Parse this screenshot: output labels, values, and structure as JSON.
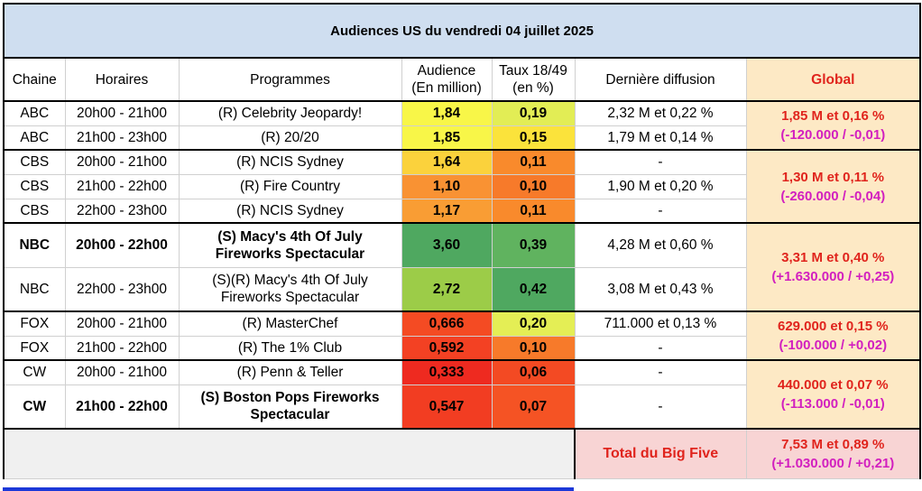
{
  "title": "Audiences US du vendredi 04 juillet 2025",
  "headers": {
    "chaine": "Chaine",
    "horaires": "Horaires",
    "programmes": "Programmes",
    "audience_l1": "Audience",
    "audience_l2": "(En million)",
    "taux_l1": "Taux 18/49",
    "taux_l2": "(en %)",
    "derniere": "Dernière diffusion",
    "global": "Global"
  },
  "rows": [
    {
      "chaine": "ABC",
      "horaires": "20h00 - 21h00",
      "prog": "(R) Celebrity Jeopardy!",
      "prog2": "",
      "audience": "1,84",
      "taux": "0,19",
      "derniere": "2,32 M et 0,22 %",
      "aud_color": "#f8f648",
      "taux_color": "#e2ed55",
      "bold": false
    },
    {
      "chaine": "ABC",
      "horaires": "21h00 - 23h00",
      "prog": "(R) 20/20",
      "prog2": "",
      "audience": "1,85",
      "taux": "0,15",
      "derniere": "1,79 M et 0,14 %",
      "aud_color": "#f8f648",
      "taux_color": "#fbe33b",
      "bold": false
    },
    {
      "chaine": "CBS",
      "horaires": "20h00 - 21h00",
      "prog": "(R) NCIS Sydney",
      "prog2": "",
      "audience": "1,64",
      "taux": "0,11",
      "derniere": "-",
      "aud_color": "#fbd23c",
      "taux_color": "#f98a2c",
      "bold": false
    },
    {
      "chaine": "CBS",
      "horaires": "21h00 - 22h00",
      "prog": "(R) Fire Country",
      "prog2": "",
      "audience": "1,10",
      "taux": "0,10",
      "derniere": "1,90 M et 0,20 %",
      "aud_color": "#f99233",
      "taux_color": "#f77a2a",
      "bold": false
    },
    {
      "chaine": "CBS",
      "horaires": "22h00 - 23h00",
      "prog": "(R) NCIS Sydney",
      "prog2": "",
      "audience": "1,17",
      "taux": "0,11",
      "derniere": "-",
      "aud_color": "#f99d34",
      "taux_color": "#f98a2c",
      "bold": false
    },
    {
      "chaine": "NBC",
      "horaires": "20h00 - 22h00",
      "prog": "(S) Macy's 4th Of July",
      "prog2": "Fireworks Spectacular",
      "audience": "3,60",
      "taux": "0,39",
      "derniere": "4,28 M et 0,60 %",
      "aud_color": "#4fa860",
      "taux_color": "#60b35f",
      "bold": true
    },
    {
      "chaine": "NBC",
      "horaires": "22h00 - 23h00",
      "prog": "(S)(R) Macy's 4th Of July",
      "prog2": "Fireworks Spectacular",
      "audience": "2,72",
      "taux": "0,42",
      "derniere": "3,08 M et 0,43 %",
      "aud_color": "#9ccc48",
      "taux_color": "#4fa860",
      "bold": false
    },
    {
      "chaine": "FOX",
      "horaires": "20h00 - 21h00",
      "prog": "(R) MasterChef",
      "prog2": "",
      "audience": "0,666",
      "taux": "0,20",
      "derniere": "711.000 et 0,13 %",
      "aud_color": "#f44b23",
      "taux_color": "#e4ee55",
      "bold": false
    },
    {
      "chaine": "FOX",
      "horaires": "21h00 - 22h00",
      "prog": "(R) The 1% Club",
      "prog2": "",
      "audience": "0,592",
      "taux": "0,10",
      "derniere": "-",
      "aud_color": "#f34123",
      "taux_color": "#f77a2a",
      "bold": false
    },
    {
      "chaine": "CW",
      "horaires": "20h00 - 21h00",
      "prog": "(R) Penn & Teller",
      "prog2": "",
      "audience": "0,333",
      "taux": "0,06",
      "derniere": "-",
      "aud_color": "#ee2a20",
      "taux_color": "#f34a23",
      "bold": false
    },
    {
      "chaine": "CW",
      "horaires": "21h00 - 22h00",
      "prog": "(S) Boston Pops Fireworks",
      "prog2": "Spectacular",
      "audience": "0,547",
      "taux": "0,07",
      "derniere": "-",
      "aud_color": "#f23d22",
      "taux_color": "#f55324",
      "bold": true
    }
  ],
  "globals": [
    {
      "main": "1,85 M et 0,16 %",
      "delta": "(-120.000 / -0,01)"
    },
    {
      "main": "1,30 M et 0,11 %",
      "delta": "(-260.000 / -0,04)"
    },
    {
      "main": "3,31 M et 0,40 %",
      "delta": "(+1.630.000 / +0,25)"
    },
    {
      "main": "629.000 et 0,15 %",
      "delta": "(-100.000 / +0,02)"
    },
    {
      "main": "440.000 et 0,07 %",
      "delta": "(-113.000 / -0,01)"
    }
  ],
  "footer": {
    "label": "Total du Big Five",
    "main": "7,53 M et 0,89 %",
    "delta": "(+1.030.000 / +0,21)"
  }
}
